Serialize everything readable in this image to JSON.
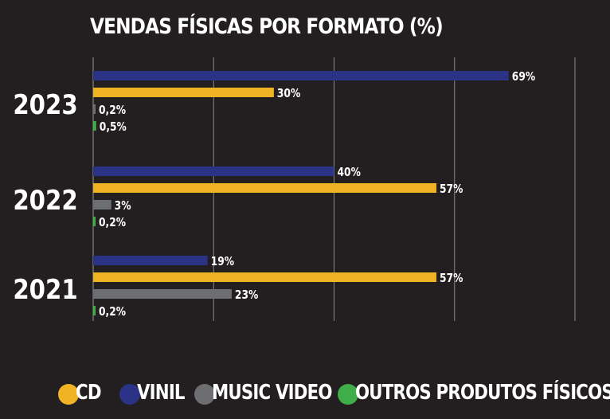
{
  "chart_data": {
    "type": "bar",
    "orientation": "horizontal",
    "title": "VENDAS FÍSICAS POR FORMATO (%)",
    "categories": [
      "2023",
      "2022",
      "2021"
    ],
    "series": [
      {
        "name": "VINIL",
        "color": "#2b3386",
        "values": [
          69,
          40,
          19
        ],
        "labels": [
          "69%",
          "40%",
          "19%"
        ]
      },
      {
        "name": "CD",
        "color": "#f0b323",
        "values": [
          30,
          57,
          57
        ],
        "labels": [
          "30%",
          "57%",
          "57%"
        ]
      },
      {
        "name": "MUSIC VIDEO",
        "color": "#6d6e71",
        "values": [
          0.2,
          3,
          23
        ],
        "labels": [
          "0,2%",
          "3%",
          "23%"
        ]
      },
      {
        "name": "OUTROS PRODUTOS FÍSICOS",
        "color": "#3fae49",
        "values": [
          0.5,
          0.2,
          0.2
        ],
        "labels": [
          "0,5%",
          "0,2%",
          "0,2%"
        ]
      }
    ],
    "xlim": [
      0,
      80
    ],
    "grid": true,
    "legend_position": "bottom"
  },
  "legend": [
    {
      "name": "CD",
      "color": "#f0b323"
    },
    {
      "name": "VINIL",
      "color": "#2b3386"
    },
    {
      "name": "MUSIC VIDEO",
      "color": "#6d6e71"
    },
    {
      "name": "OUTROS PRODUTOS FÍSICOS",
      "color": "#3fae49"
    }
  ]
}
